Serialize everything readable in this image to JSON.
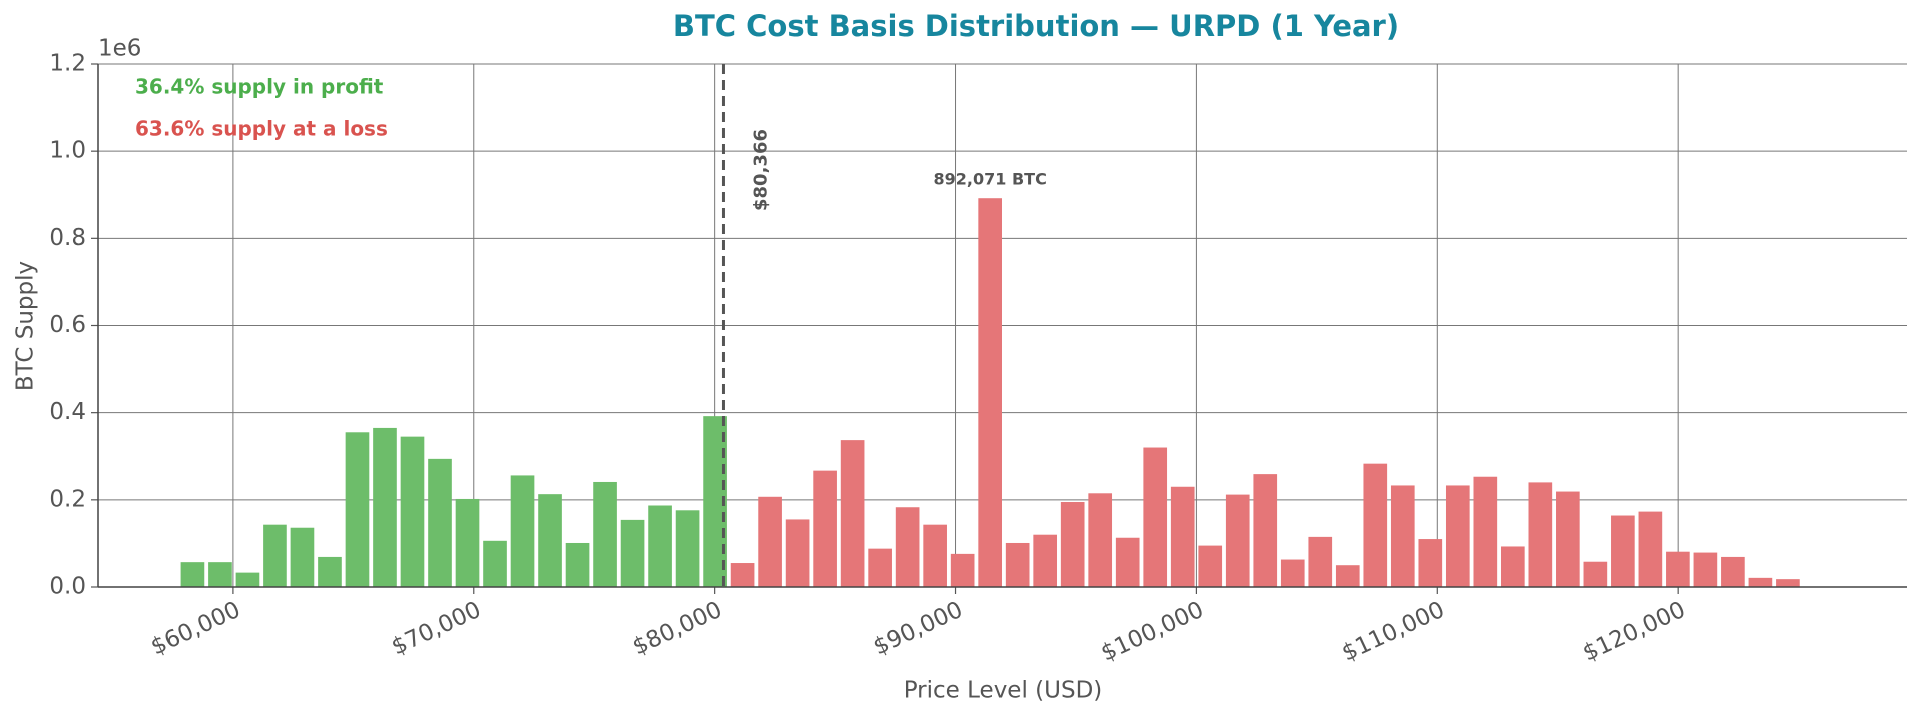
{
  "chart_data": {
    "type": "bar",
    "title": "BTC Cost Basis Distribution — URPD (1 Year)",
    "x_label": "Price Level (USD)",
    "y_label": "BTC Supply",
    "y_offset_label": "1e6",
    "annotations": [
      {
        "text": "36.4% supply in profit",
        "color": "#4cae4c"
      },
      {
        "text": "63.6% supply at a loss",
        "color": "#d9534f"
      }
    ],
    "current_price": 80366,
    "current_price_label": "$80,366",
    "grid": true,
    "xlim": [
      54400,
      129500
    ],
    "ylim": [
      0,
      1200000
    ],
    "xticks": [
      {
        "value": 60000,
        "label": "$60,000"
      },
      {
        "value": 70000,
        "label": "$70,000"
      },
      {
        "value": 80000,
        "label": "$80,000"
      },
      {
        "value": 90000,
        "label": "$90,000"
      },
      {
        "value": 100000,
        "label": "$100,000"
      },
      {
        "value": 110000,
        "label": "$110,000"
      },
      {
        "value": 120000,
        "label": "$120,000"
      }
    ],
    "yticks": [
      {
        "value": 0,
        "label": "0.0"
      },
      {
        "value": 200000,
        "label": "0.2"
      },
      {
        "value": 400000,
        "label": "0.4"
      },
      {
        "value": 600000,
        "label": "0.6"
      },
      {
        "value": 800000,
        "label": "0.8"
      },
      {
        "value": 1000000,
        "label": "1.0"
      },
      {
        "value": 1200000,
        "label": "1.2"
      }
    ],
    "series": [
      {
        "color": "#6dbd6a",
        "x": [
          58320,
          59462,
          60604,
          61746,
          62888,
          64030,
          65172,
          66314,
          67456,
          68598,
          69740,
          70882,
          72024,
          73166,
          74308,
          75450,
          76592,
          77734,
          78876,
          80018
        ],
        "values": [
          57000,
          57000,
          33000,
          143000,
          136000,
          69000,
          355000,
          365000,
          345000,
          294000,
          202000,
          106000,
          256000,
          213000,
          101000,
          241000,
          154000,
          187000,
          176000,
          392000
        ]
      },
      {
        "color": "#e57678",
        "x": [
          81160,
          82302,
          83444,
          84586,
          85728,
          86870,
          88012,
          89154,
          90296,
          91438,
          92580,
          93722,
          94864,
          96006,
          97148,
          98290,
          99432,
          100574,
          101716,
          102858,
          104000,
          105142,
          106284,
          107426,
          108568,
          109710,
          110852,
          111994,
          113136,
          114278,
          115420,
          116562,
          117704,
          118846,
          119988,
          121130,
          122272,
          123414,
          124556
        ],
        "values": [
          55000,
          207000,
          155000,
          267000,
          337000,
          88000,
          183000,
          143000,
          76000,
          892071,
          101000,
          120000,
          195000,
          215000,
          113000,
          320000,
          230000,
          95000,
          212000,
          259000,
          63000,
          115000,
          50000,
          283000,
          233000,
          110000,
          233000,
          253000,
          93000,
          240000,
          219000,
          58000,
          164000,
          173000,
          81000,
          79000,
          69000,
          21000,
          18000
        ],
        "value_labels": [
          null,
          null,
          null,
          null,
          null,
          null,
          null,
          null,
          null,
          "892,071 BTC",
          null,
          null,
          null,
          null,
          null,
          null,
          null,
          null,
          null,
          null,
          null,
          null,
          null,
          null,
          null,
          null,
          null,
          null,
          null,
          null,
          null,
          null,
          null,
          null,
          null,
          null,
          null,
          null,
          null
        ]
      }
    ]
  }
}
